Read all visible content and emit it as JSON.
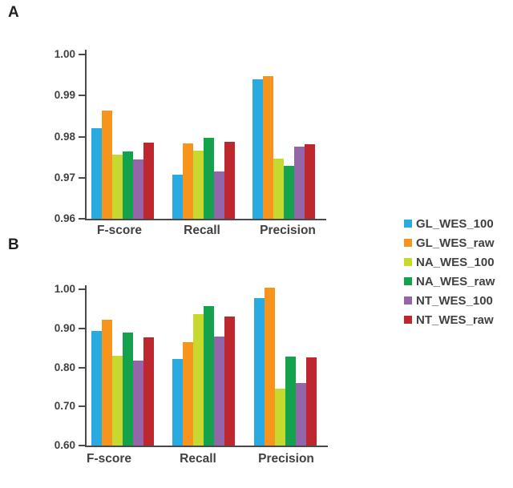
{
  "panel_labels": [
    "A",
    "B"
  ],
  "chart_data": [
    {
      "type": "bar",
      "panel": "A",
      "categories": [
        "F-score",
        "Recall",
        "Precision"
      ],
      "series": [
        {
          "name": "GL_WES_100",
          "color": "#29ABE2",
          "values": [
            0.982,
            0.9707,
            0.9939
          ]
        },
        {
          "name": "GL_WES_raw",
          "color": "#F7941E",
          "values": [
            0.9864,
            0.9784,
            0.9948
          ]
        },
        {
          "name": "NA_WES_100",
          "color": "#C7D92E",
          "values": [
            0.9756,
            0.9765,
            0.9746
          ]
        },
        {
          "name": "NA_WES_raw",
          "color": "#15A24C",
          "values": [
            0.9763,
            0.9797,
            0.9728
          ]
        },
        {
          "name": "NT_WES_100",
          "color": "#9565A9",
          "values": [
            0.9745,
            0.9715,
            0.9776
          ]
        },
        {
          "name": "NT_WES_raw",
          "color": "#BE272D",
          "values": [
            0.9785,
            0.9788,
            0.9782
          ]
        }
      ],
      "ylim": [
        0.96,
        1.0
      ],
      "yticks": [
        1.0,
        0.99,
        0.98,
        0.97,
        0.96
      ],
      "ytick_labels": [
        "1.00",
        "0.99",
        "0.98",
        "0.97",
        "0.96"
      ],
      "grid": false,
      "legend_position": "right"
    },
    {
      "type": "bar",
      "panel": "B",
      "categories": [
        "F-score",
        "Recall",
        "Precision"
      ],
      "series": [
        {
          "name": "GL_WES_100",
          "color": "#29ABE2",
          "values": [
            0.893,
            0.821,
            0.977
          ]
        },
        {
          "name": "GL_WES_raw",
          "color": "#F7941E",
          "values": [
            0.922,
            0.864,
            1.005
          ]
        },
        {
          "name": "NA_WES_100",
          "color": "#C7D92E",
          "values": [
            0.829,
            0.936,
            0.745
          ]
        },
        {
          "name": "NA_WES_raw",
          "color": "#15A24C",
          "values": [
            0.889,
            0.957,
            0.828
          ]
        },
        {
          "name": "NT_WES_100",
          "color": "#9565A9",
          "values": [
            0.818,
            0.88,
            0.76
          ]
        },
        {
          "name": "NT_WES_raw",
          "color": "#BE272D",
          "values": [
            0.876,
            0.93,
            0.826
          ]
        }
      ],
      "ylim": [
        0.6,
        1.0
      ],
      "yticks": [
        1.0,
        0.9,
        0.8,
        0.7,
        0.6
      ],
      "ytick_labels": [
        "1.00",
        "0.90",
        "0.80",
        "0.70",
        "0.60"
      ],
      "grid": false,
      "legend_position": "right"
    }
  ],
  "legend": {
    "items": [
      {
        "name": "GL_WES_100",
        "color": "#29ABE2"
      },
      {
        "name": "GL_WES_raw",
        "color": "#F7941E"
      },
      {
        "name": "NA_WES_100",
        "color": "#C7D92E"
      },
      {
        "name": "NA_WES_raw",
        "color": "#15A24C"
      },
      {
        "name": "NT_WES_100",
        "color": "#9565A9"
      },
      {
        "name": "NT_WES_raw",
        "color": "#BE272D"
      }
    ]
  },
  "colors": {
    "text": "#414042",
    "axis": "#4A4A4C",
    "background": "#FFFFFF"
  }
}
